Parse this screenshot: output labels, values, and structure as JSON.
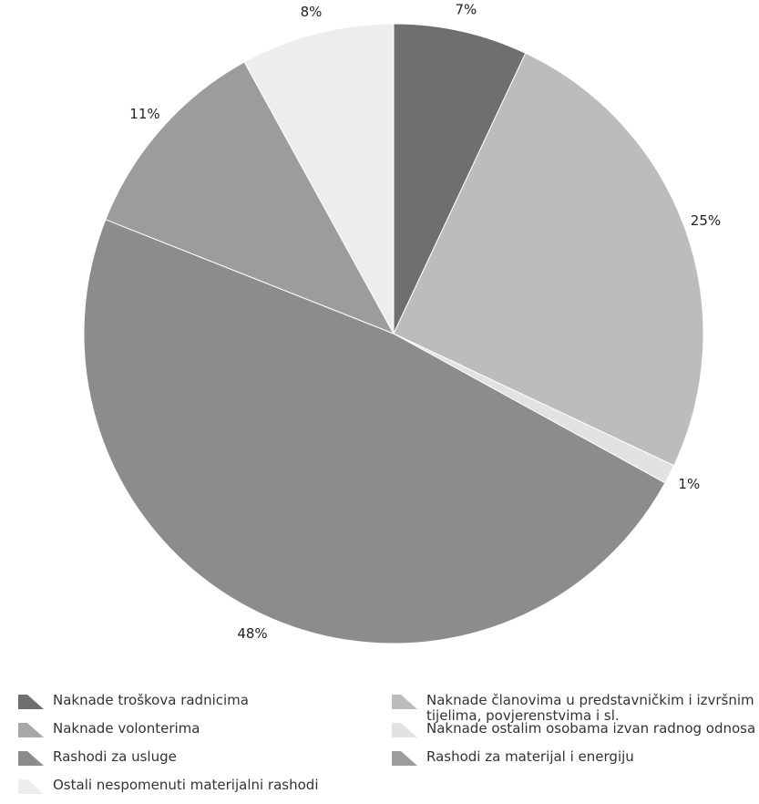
{
  "chart_data": {
    "type": "pie",
    "categories": [
      "Naknade troškova radnicima",
      "Naknade članovima u predstavničkim i izvršnim tijelima, povjerenstvima i sl.",
      "Naknade volonterima",
      "Naknade ostalim osobama izvan radnog odnosa",
      "Rashodi za usluge",
      "Rashodi za materijal i energiju",
      "Ostali nespomenuti materijalni rashodi"
    ],
    "values": [
      7,
      25,
      null,
      1,
      48,
      11,
      8
    ],
    "value_labels": [
      "7%",
      "25%",
      null,
      "1%",
      "48%",
      "11%",
      "8%"
    ],
    "colors": [
      "#6f6f6f",
      "#bcbcbc",
      "#a8a8a8",
      "#e2e2e2",
      "#8c8c8c",
      "#9c9c9c",
      "#ededed"
    ]
  }
}
